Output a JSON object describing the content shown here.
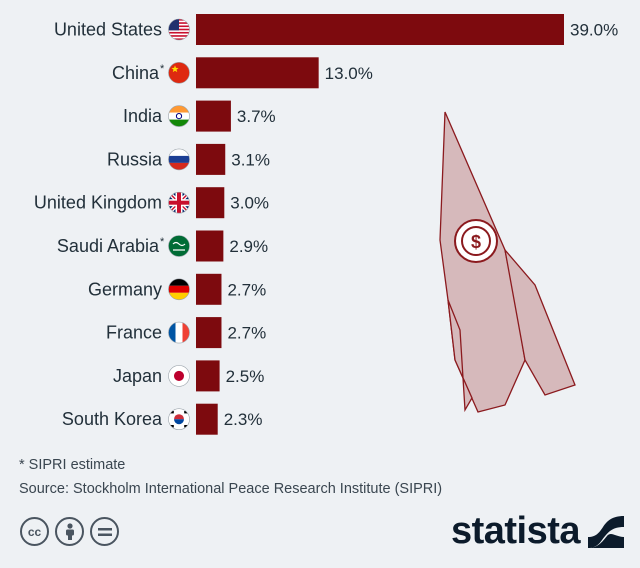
{
  "chart_data": {
    "type": "bar",
    "orientation": "horizontal",
    "unit": "%",
    "categories": [
      "United States",
      "China",
      "India",
      "Russia",
      "United Kingdom",
      "Saudi Arabia",
      "Germany",
      "France",
      "Japan",
      "South Korea"
    ],
    "asterisks": [
      false,
      true,
      false,
      false,
      false,
      true,
      false,
      false,
      false,
      false
    ],
    "values": [
      39.0,
      13.0,
      3.7,
      3.1,
      3.0,
      2.9,
      2.7,
      2.7,
      2.5,
      2.3
    ],
    "value_labels": [
      "39.0%",
      "13.0%",
      "3.7%",
      "3.1%",
      "3.0%",
      "2.9%",
      "2.7%",
      "2.7%",
      "2.5%",
      "2.3%"
    ],
    "flag_icons": [
      "us-flag-icon",
      "china-flag-icon",
      "india-flag-icon",
      "russia-flag-icon",
      "uk-flag-icon",
      "saudi-arabia-flag-icon",
      "germany-flag-icon",
      "france-flag-icon",
      "japan-flag-icon",
      "south-korea-flag-icon"
    ],
    "xlim": [
      0,
      39.0
    ],
    "bar_color": "#7d0a0e",
    "title": "",
    "xlabel": "",
    "ylabel": ""
  },
  "footnotes": {
    "note": "* SIPRI estimate",
    "source": "Source: Stockholm International Peace Research Institute (SIPRI)"
  },
  "license_icons": [
    "creative-commons-icon",
    "attribution-icon",
    "no-derivatives-icon"
  ],
  "brand": {
    "name": "statista"
  },
  "illustration": {
    "name": "rocket-dollar-icon"
  },
  "colors": {
    "background": "#eef1f4",
    "bar": "#7d0a0e",
    "text": "#22303a",
    "rocket_fill": "#d4b5b7",
    "rocket_line": "#8b1a1e",
    "brand": "#0c1b2b"
  }
}
